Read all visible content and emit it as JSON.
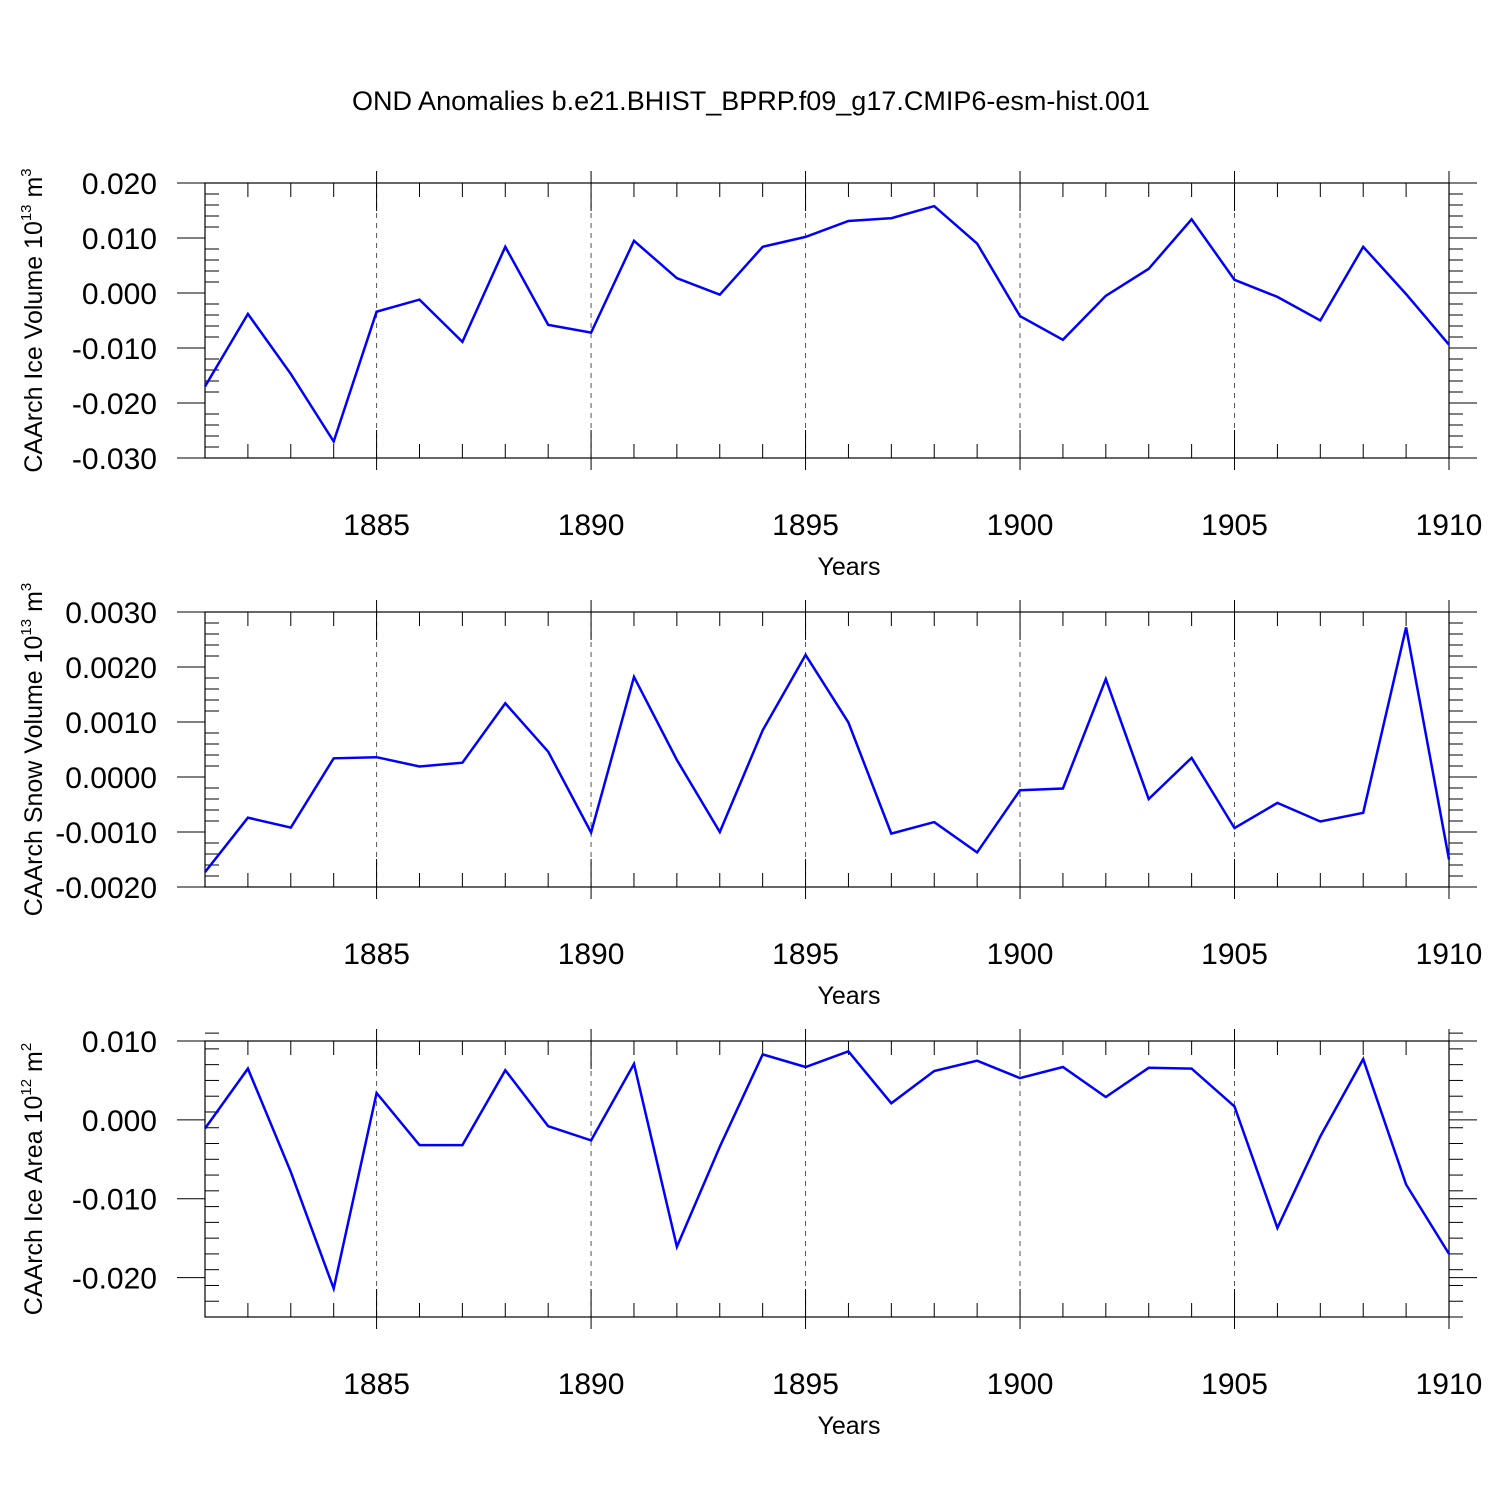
{
  "title": "OND Anomalies b.e21.BHIST_BPRP.f09_g17.CMIP6-esm-hist.001",
  "colors": {
    "series": "#0000ff",
    "frame": "#000000",
    "grid": "#555555",
    "background": "#ffffff"
  },
  "chart_data": [
    {
      "type": "line",
      "ylabel": {
        "text": "CAArch Ice Volume 10",
        "exp": "13",
        "unit": " m",
        "unit_exp": "3"
      },
      "xlabel": "Years",
      "xlim": [
        1881,
        1910
      ],
      "ylim": [
        -0.03,
        0.02
      ],
      "xticks": [
        1885,
        1890,
        1895,
        1900,
        1905,
        1910
      ],
      "xtick_labels": [
        "1885",
        "1890",
        "1895",
        "1900",
        "1905",
        "1910"
      ],
      "yticks": [
        -0.03,
        -0.02,
        -0.01,
        0.0,
        0.01,
        0.02
      ],
      "ytick_labels": [
        "-0.030",
        "-0.020",
        "-0.010",
        "0.000",
        "0.010",
        "0.020"
      ],
      "grid": "vertical dashed at major x ticks",
      "series": [
        {
          "name": "CAArch Ice Volume",
          "x": [
            1881,
            1882,
            1883,
            1884,
            1885,
            1886,
            1887,
            1888,
            1889,
            1890,
            1891,
            1892,
            1893,
            1894,
            1895,
            1896,
            1897,
            1898,
            1899,
            1900,
            1901,
            1902,
            1903,
            1904,
            1905,
            1906,
            1907,
            1908,
            1909,
            1910
          ],
          "values": [
            -0.017,
            -0.0038,
            -0.0147,
            -0.027,
            -0.0034,
            -0.0012,
            -0.0089,
            0.0084,
            -0.0058,
            -0.0072,
            0.0095,
            0.0027,
            -0.0003,
            0.0084,
            0.0102,
            0.0131,
            0.0136,
            0.0158,
            0.009,
            -0.0042,
            -0.0085,
            -0.0005,
            0.0044,
            0.0134,
            0.0024,
            -0.0007,
            -0.005,
            0.0084,
            -0.0002,
            -0.0094
          ]
        }
      ]
    },
    {
      "type": "line",
      "ylabel": {
        "text": "CAArch Snow Volume 10",
        "exp": "13",
        "unit": " m",
        "unit_exp": "3"
      },
      "xlabel": "Years",
      "xlim": [
        1881,
        1910
      ],
      "ylim": [
        -0.002,
        0.003
      ],
      "xticks": [
        1885,
        1890,
        1895,
        1900,
        1905,
        1910
      ],
      "xtick_labels": [
        "1885",
        "1890",
        "1895",
        "1900",
        "1905",
        "1910"
      ],
      "yticks": [
        -0.002,
        -0.001,
        0.0,
        0.001,
        0.002,
        0.003
      ],
      "ytick_labels": [
        "-0.0020",
        "-0.0010",
        "0.0000",
        "0.0010",
        "0.0020",
        "0.0030"
      ],
      "grid": "vertical dashed at major x ticks",
      "series": [
        {
          "name": "CAArch Snow Volume",
          "x": [
            1881,
            1882,
            1883,
            1884,
            1885,
            1886,
            1887,
            1888,
            1889,
            1890,
            1891,
            1892,
            1893,
            1894,
            1895,
            1896,
            1897,
            1898,
            1899,
            1900,
            1901,
            1902,
            1903,
            1904,
            1905,
            1906,
            1907,
            1908,
            1909,
            1910
          ],
          "values": [
            -0.00173,
            -0.00074,
            -0.00092,
            0.00034,
            0.00036,
            0.00019,
            0.00026,
            0.00134,
            0.00046,
            -0.00101,
            0.00182,
            0.00031,
            -0.001,
            0.00085,
            0.00222,
            0.00099,
            -0.00103,
            -0.00082,
            -0.00137,
            -0.00024,
            -0.00021,
            0.00178,
            -0.0004,
            0.00035,
            -0.00093,
            -0.00047,
            -0.00081,
            -0.00065,
            0.00272,
            -0.0015
          ]
        }
      ]
    },
    {
      "type": "line",
      "ylabel": {
        "text": "CAArch Ice Area 10",
        "exp": "12",
        "unit": " m",
        "unit_exp": "2"
      },
      "xlabel": "Years",
      "xlim": [
        1881,
        1910
      ],
      "ylim": [
        -0.025,
        0.01
      ],
      "xticks": [
        1885,
        1890,
        1895,
        1900,
        1905,
        1910
      ],
      "xtick_labels": [
        "1885",
        "1890",
        "1895",
        "1900",
        "1905",
        "1910"
      ],
      "yticks": [
        -0.02,
        -0.01,
        0.0,
        0.01
      ],
      "ytick_labels": [
        "-0.020",
        "-0.010",
        "0.000",
        "0.010"
      ],
      "grid": "vertical dashed at major x ticks",
      "series": [
        {
          "name": "CAArch Ice Area",
          "x": [
            1881,
            1882,
            1883,
            1884,
            1885,
            1886,
            1887,
            1888,
            1889,
            1890,
            1891,
            1892,
            1893,
            1894,
            1895,
            1896,
            1897,
            1898,
            1899,
            1900,
            1901,
            1902,
            1903,
            1904,
            1905,
            1906,
            1907,
            1908,
            1909,
            1910
          ],
          "values": [
            -0.0011,
            0.0065,
            -0.0066,
            -0.0214,
            0.0034,
            -0.0032,
            -0.0032,
            0.0063,
            -0.0008,
            -0.0026,
            0.0071,
            -0.0161,
            -0.0034,
            0.0083,
            0.0067,
            0.0087,
            0.0021,
            0.0062,
            0.0075,
            0.0053,
            0.0067,
            0.0029,
            0.0066,
            0.0065,
            0.0017,
            -0.0137,
            -0.0021,
            0.0077,
            -0.0082,
            -0.017
          ]
        }
      ]
    }
  ]
}
